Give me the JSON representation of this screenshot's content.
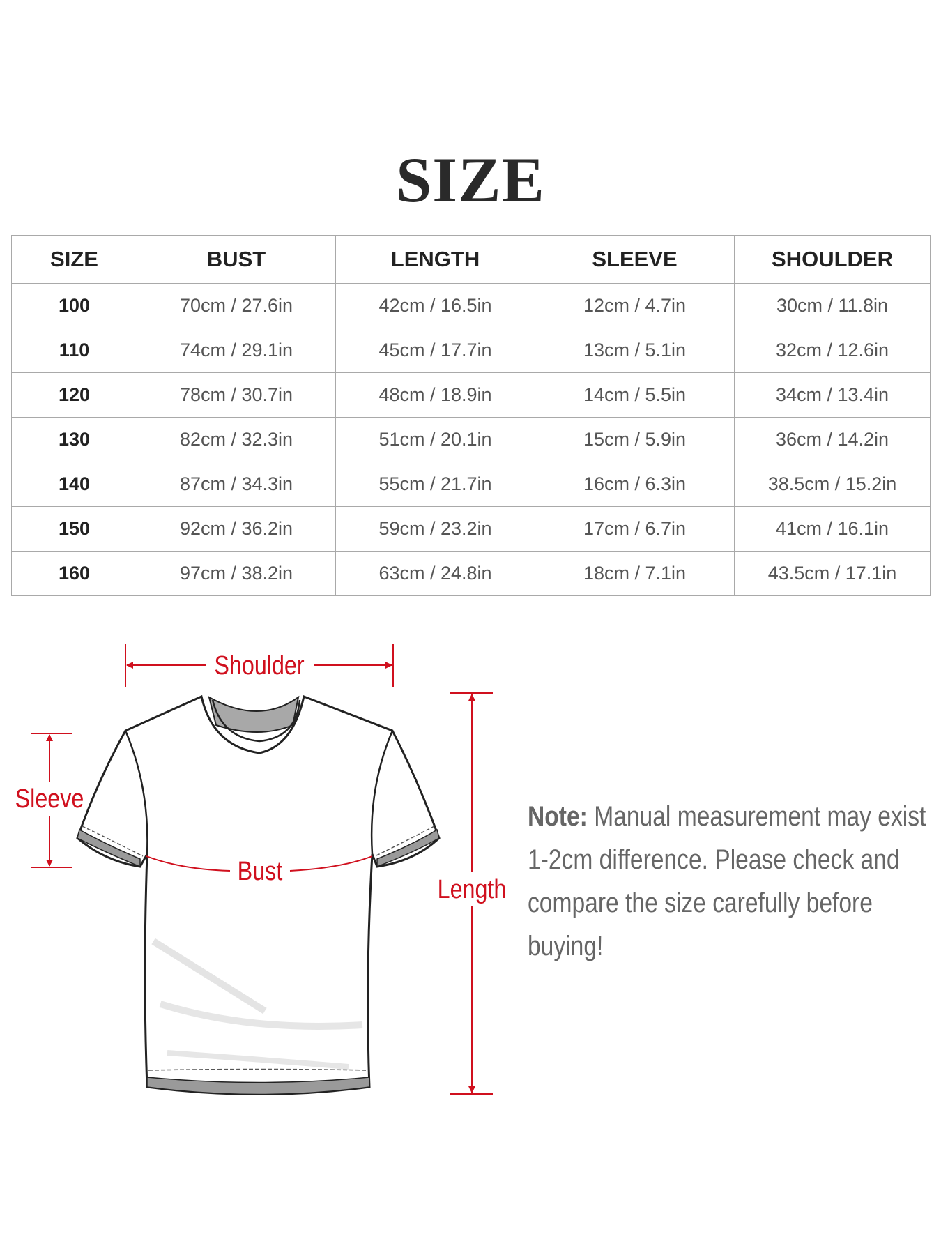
{
  "title": "SIZE",
  "table": {
    "headers": [
      "SIZE",
      "BUST",
      "LENGTH",
      "SLEEVE",
      "SHOULDER"
    ],
    "rows": [
      [
        "100",
        "70cm / 27.6in",
        "42cm / 16.5in",
        "12cm / 4.7in",
        "30cm / 11.8in"
      ],
      [
        "110",
        "74cm / 29.1in",
        "45cm / 17.7in",
        "13cm / 5.1in",
        "32cm / 12.6in"
      ],
      [
        "120",
        "78cm / 30.7in",
        "48cm / 18.9in",
        "14cm / 5.5in",
        "34cm / 13.4in"
      ],
      [
        "130",
        "82cm / 32.3in",
        "51cm / 20.1in",
        "15cm / 5.9in",
        "36cm / 14.2in"
      ],
      [
        "140",
        "87cm / 34.3in",
        "55cm / 21.7in",
        "16cm / 6.3in",
        "38.5cm / 15.2in"
      ],
      [
        "150",
        "92cm / 36.2in",
        "59cm / 23.2in",
        "17cm / 6.7in",
        "41cm / 16.1in"
      ],
      [
        "160",
        "97cm / 38.2in",
        "63cm / 24.8in",
        "18cm / 7.1in",
        "43.5cm / 17.1in"
      ]
    ]
  },
  "diagram": {
    "labels": {
      "shoulder": "Shoulder",
      "sleeve": "Sleeve",
      "bust": "Bust",
      "length": "Length"
    },
    "measure_color": "#d0101e",
    "icon": "t-shirt-outline"
  },
  "note": {
    "label": "Note:",
    "text": " Manual measurement may exist 1-2cm difference. Please check and compare the size carefully before buying!"
  }
}
